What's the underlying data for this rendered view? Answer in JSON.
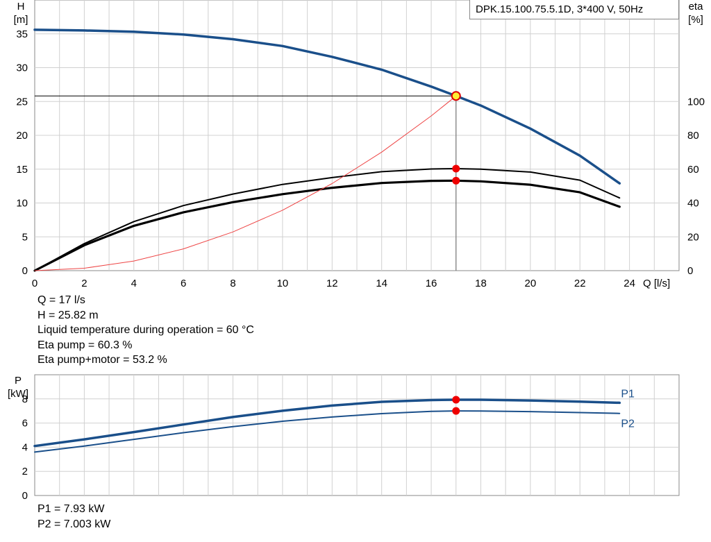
{
  "chart_data": [
    {
      "type": "line",
      "title": "",
      "xlabel": "Q [l/s]",
      "ylabel_left": "H\n[m]",
      "ylabel_right": "eta\n[%]",
      "xlim": [
        0,
        26
      ],
      "ylim_left": [
        0,
        40
      ],
      "ylim_right": [
        0,
        160
      ],
      "x_ticks": [
        0,
        2,
        4,
        6,
        8,
        10,
        12,
        14,
        16,
        18,
        20,
        22,
        24
      ],
      "y_ticks_left": [
        0,
        5,
        10,
        15,
        20,
        25,
        30,
        35
      ],
      "y_ticks_right": [
        0,
        20,
        40,
        60,
        80,
        100
      ],
      "grid": true,
      "series": [
        {
          "key": "head",
          "axis": "left",
          "color": "#1a4f8a",
          "x": [
            0,
            2,
            4,
            6,
            8,
            10,
            12,
            14,
            16,
            17,
            18,
            20,
            22,
            23.6
          ],
          "y": [
            35.6,
            35.5,
            35.3,
            34.9,
            34.2,
            33.2,
            31.6,
            29.7,
            27.2,
            25.82,
            24.4,
            21.0,
            17.0,
            12.9
          ]
        },
        {
          "key": "eta-pump",
          "axis": "right",
          "color": "#000000",
          "x": [
            0,
            2,
            4,
            6,
            8,
            10,
            12,
            14,
            16,
            17,
            18,
            20,
            22,
            23.6
          ],
          "y": [
            0,
            16,
            29,
            38.5,
            45.3,
            51,
            55,
            58.5,
            60.1,
            60.3,
            60,
            58.3,
            53.5,
            43
          ]
        },
        {
          "key": "eta-total",
          "axis": "right",
          "color": "#000000",
          "x": [
            0,
            2,
            4,
            6,
            8,
            10,
            12,
            14,
            16,
            17,
            18,
            20,
            22,
            23.6
          ],
          "y": [
            0,
            15,
            26.5,
            34.5,
            40.5,
            45.2,
            49,
            51.8,
            53.1,
            53.2,
            52.8,
            50.8,
            46.3,
            37.8
          ]
        },
        {
          "key": "system",
          "axis": "left",
          "color": "#ee4444",
          "x": [
            0,
            2,
            4,
            6,
            8,
            10,
            12,
            14,
            16,
            17
          ],
          "y": [
            0,
            0.36,
            1.43,
            3.22,
            5.72,
            8.93,
            12.87,
            17.52,
            22.87,
            25.82
          ]
        }
      ],
      "operating_point": {
        "x": 17,
        "head": 25.82,
        "eta_pump": 60.3,
        "eta_total": 53.2
      }
    },
    {
      "type": "line",
      "title": "",
      "xlabel": "",
      "ylabel": "P\n[kW]",
      "xlim": [
        0,
        26
      ],
      "ylim": [
        0,
        10
      ],
      "y_ticks": [
        0,
        2,
        4,
        6,
        8
      ],
      "grid": true,
      "series": [
        {
          "name": "P1",
          "color": "#1a4f8a",
          "x": [
            0,
            2,
            4,
            6,
            8,
            10,
            12,
            14,
            16,
            17,
            18,
            20,
            22,
            23.6
          ],
          "y": [
            4.1,
            4.65,
            5.25,
            5.88,
            6.5,
            7.02,
            7.45,
            7.76,
            7.9,
            7.93,
            7.93,
            7.87,
            7.77,
            7.68
          ]
        },
        {
          "name": "P2",
          "color": "#1a4f8a",
          "x": [
            0,
            2,
            4,
            6,
            8,
            10,
            12,
            14,
            16,
            17,
            18,
            20,
            22,
            23.6
          ],
          "y": [
            3.6,
            4.1,
            4.65,
            5.2,
            5.7,
            6.15,
            6.5,
            6.78,
            6.97,
            7.003,
            7.0,
            6.95,
            6.87,
            6.8
          ]
        }
      ],
      "operating_point": {
        "x": 17,
        "P1": 7.93,
        "P2": 7.003
      }
    }
  ],
  "model": "DPK.15.100.75.5.1D, 3*400 V, 50Hz",
  "readouts": {
    "q": "Q = 17 l/s",
    "h": "H = 25.82 m",
    "temp": "Liquid temperature during operation = 60 °C",
    "eta_pump": "Eta pump = 60.3 %",
    "eta_total": "Eta pump+motor = 53.2 %",
    "p1": "P1 = 7.93 kW",
    "p2": "P2 = 7.003 kW"
  },
  "colors": {
    "head": "#1a4f8a",
    "eta": "#000000",
    "system": "#ee4444",
    "power": "#1a4f8a",
    "marker": "#ee0000",
    "op_marker": "#ffee33",
    "grid": "#d0d0d0"
  }
}
